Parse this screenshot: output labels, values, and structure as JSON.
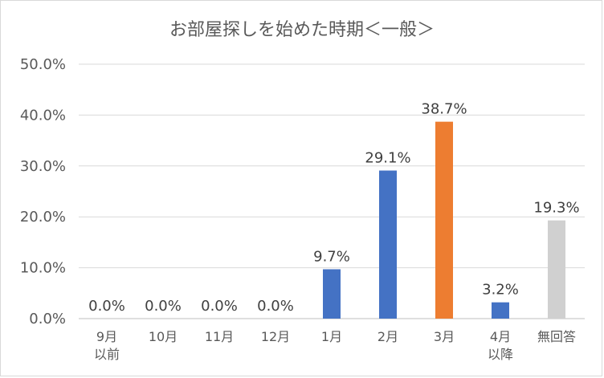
{
  "chart_data": {
    "type": "bar",
    "title": "お部屋探しを始めた時期＜一般＞",
    "xlabel": "",
    "ylabel": "",
    "ylim": [
      0,
      50
    ],
    "yticks": [
      "0.0%",
      "10.0%",
      "20.0%",
      "30.0%",
      "40.0%",
      "50.0%"
    ],
    "grid": true,
    "legend": "none",
    "categories": [
      [
        "9月",
        "以前"
      ],
      [
        "10月"
      ],
      [
        "11月"
      ],
      [
        "12月"
      ],
      [
        "1月"
      ],
      [
        "2月"
      ],
      [
        "3月"
      ],
      [
        "4月",
        "以降"
      ],
      [
        "無回答"
      ]
    ],
    "values": [
      0.0,
      0.0,
      0.0,
      0.0,
      9.7,
      29.1,
      38.7,
      3.2,
      19.3
    ],
    "data_labels": [
      "0.0%",
      "0.0%",
      "0.0%",
      "0.0%",
      "9.7%",
      "29.1%",
      "38.7%",
      "3.2%",
      "19.3%"
    ],
    "colors": [
      "#4472c4",
      "#4472c4",
      "#4472c4",
      "#4472c4",
      "#4472c4",
      "#4472c4",
      "#ed7d31",
      "#4472c4",
      "#d0d0d0"
    ]
  }
}
